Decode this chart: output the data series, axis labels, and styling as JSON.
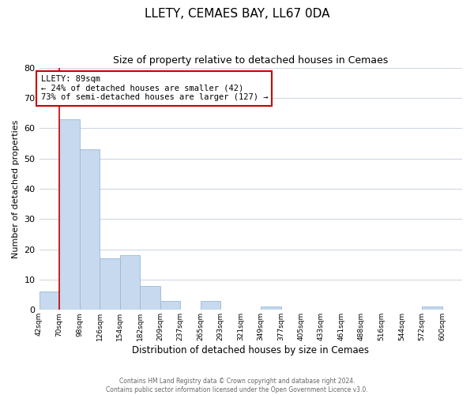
{
  "title": "LLETY, CEMAES BAY, LL67 0DA",
  "subtitle": "Size of property relative to detached houses in Cemaes",
  "xlabel": "Distribution of detached houses by size in Cemaes",
  "ylabel": "Number of detached properties",
  "bar_labels": [
    "42sqm",
    "70sqm",
    "98sqm",
    "126sqm",
    "154sqm",
    "182sqm",
    "209sqm",
    "237sqm",
    "265sqm",
    "293sqm",
    "321sqm",
    "349sqm",
    "377sqm",
    "405sqm",
    "433sqm",
    "461sqm",
    "488sqm",
    "516sqm",
    "544sqm",
    "572sqm",
    "600sqm"
  ],
  "bar_values": [
    6,
    63,
    53,
    17,
    18,
    8,
    3,
    0,
    3,
    0,
    0,
    1,
    0,
    0,
    0,
    0,
    0,
    0,
    0,
    1,
    0
  ],
  "bar_color": "#c6d9ee",
  "bar_edge_color": "#9ab8d8",
  "ylim": [
    0,
    80
  ],
  "yticks": [
    0,
    10,
    20,
    30,
    40,
    50,
    60,
    70,
    80
  ],
  "property_line_x": 1.0,
  "property_line_color": "#cc0000",
  "annotation_line1": "LLETY: 89sqm",
  "annotation_line2": "← 24% of detached houses are smaller (42)",
  "annotation_line3": "73% of semi-detached houses are larger (127) →",
  "footer_line1": "Contains HM Land Registry data © Crown copyright and database right 2024.",
  "footer_line2": "Contains public sector information licensed under the Open Government Licence v3.0.",
  "background_color": "#ffffff",
  "grid_color": "#d0d8e0"
}
